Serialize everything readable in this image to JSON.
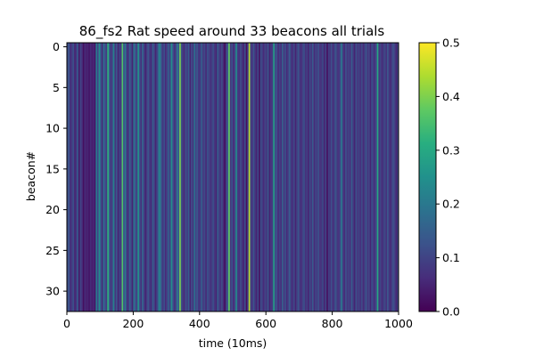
{
  "chart_data": {
    "type": "heatmap",
    "title": "86_fs2 Rat speed around 33 beacons all trials",
    "xlabel": "time (10ms)",
    "ylabel": "beacon#",
    "xlim": [
      0,
      1000
    ],
    "ylim": [
      32.5,
      -0.5
    ],
    "x_ticks": [
      0,
      200,
      400,
      600,
      800,
      1000
    ],
    "x_tick_labels": [
      "0",
      "200",
      "400",
      "600",
      "800",
      "1000"
    ],
    "y_ticks": [
      0,
      5,
      10,
      15,
      20,
      25,
      30
    ],
    "y_tick_labels": [
      "0",
      "5",
      "10",
      "15",
      "20",
      "25",
      "30"
    ],
    "rows": 33,
    "colormap": "viridis",
    "color_range": [
      0.0,
      0.5
    ],
    "colorbar_ticks": [
      0.0,
      0.1,
      0.2,
      0.3,
      0.4,
      0.5
    ],
    "colorbar_tick_labels": [
      "0.0",
      "0.1",
      "0.2",
      "0.3",
      "0.4",
      "0.5"
    ],
    "grid": false,
    "column_speed": [
      0.11,
      0.13,
      0.06,
      0.09,
      0.12,
      0.05,
      0.08,
      0.14,
      0.03,
      0.1,
      0.07,
      0.02,
      0.06,
      0.04,
      0.05,
      0.03,
      0.06,
      0.04,
      0.05,
      0.03,
      0.2,
      0.1,
      0.24,
      0.14,
      0.06,
      0.18,
      0.12,
      0.09,
      0.32,
      0.15,
      0.07,
      0.11,
      0.22,
      0.08,
      0.13,
      0.05,
      0.1,
      0.08,
      0.36,
      0.12,
      0.2,
      0.09,
      0.06,
      0.15,
      0.11,
      0.05,
      0.19,
      0.13,
      0.09,
      0.26,
      0.12,
      0.07,
      0.16,
      0.1,
      0.05,
      0.09,
      0.13,
      0.08,
      0.06,
      0.14,
      0.11,
      0.05,
      0.1,
      0.17,
      0.22,
      0.13,
      0.08,
      0.12,
      0.06,
      0.1,
      0.15,
      0.09,
      0.24,
      0.14,
      0.07,
      0.1,
      0.2,
      0.13,
      0.4,
      0.12,
      0.08,
      0.06,
      0.12,
      0.09,
      0.14,
      0.05,
      0.11,
      0.08,
      0.18,
      0.1,
      0.13,
      0.07,
      0.09,
      0.15,
      0.08,
      0.11,
      0.06,
      0.12,
      0.1,
      0.07,
      0.09,
      0.12,
      0.08,
      0.05,
      0.14,
      0.1,
      0.07,
      0.11,
      0.06,
      0.02,
      0.09,
      0.13,
      0.38,
      0.08,
      0.12,
      0.06,
      0.1,
      0.24,
      0.09,
      0.07,
      0.11,
      0.08,
      0.05,
      0.12,
      0.02,
      0.09,
      0.45,
      0.1,
      0.07,
      0.13,
      0.08,
      0.05,
      0.11,
      0.02,
      0.12,
      0.09,
      0.06,
      0.1,
      0.08,
      0.13,
      0.05,
      0.07,
      0.09,
      0.28,
      0.11,
      0.12,
      0.06,
      0.1,
      0.07,
      0.15,
      0.08,
      0.12,
      0.06,
      0.1,
      0.14,
      0.08,
      0.07,
      0.11,
      0.05,
      0.09,
      0.13,
      0.08,
      0.06,
      0.1,
      0.12,
      0.07,
      0.09,
      0.05,
      0.11,
      0.08,
      0.14,
      0.06,
      0.1,
      0.09,
      0.12,
      0.07,
      0.08,
      0.11,
      0.05,
      0.1,
      0.02,
      0.09,
      0.08,
      0.12,
      0.06,
      0.1,
      0.13,
      0.08,
      0.07,
      0.11,
      0.2,
      0.09,
      0.06,
      0.12,
      0.08,
      0.1,
      0.07,
      0.14,
      0.09,
      0.05,
      0.12,
      0.08,
      0.1,
      0.07,
      0.11,
      0.06,
      0.09,
      0.13,
      0.08,
      0.1,
      0.05,
      0.12,
      0.09,
      0.07,
      0.11,
      0.3,
      0.08,
      0.1,
      0.06,
      0.09,
      0.11,
      0.07,
      0.13,
      0.08,
      0.06,
      0.1,
      0.12,
      0.09,
      0.05,
      0.11
    ]
  }
}
